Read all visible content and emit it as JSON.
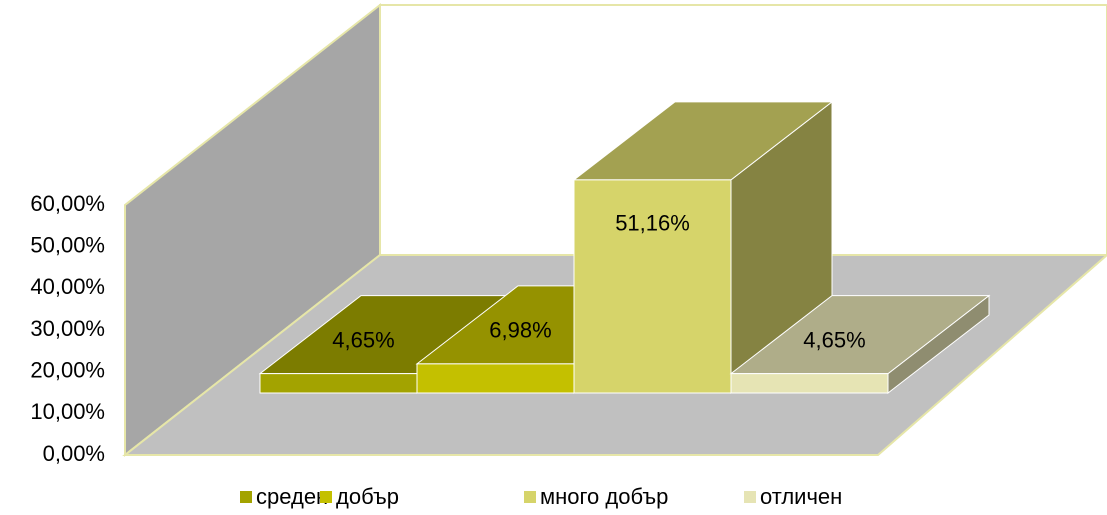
{
  "chart_data": {
    "type": "bar3d",
    "categories": [
      "среден",
      "добър",
      "много добър",
      "отличен"
    ],
    "values": [
      4.65,
      6.98,
      51.16,
      4.65
    ],
    "value_labels": [
      "4,65%",
      "6,98%",
      "51,16%",
      "4,65%"
    ],
    "colors": [
      "#a3a300",
      "#c4c000",
      "#d6d46a",
      "#e6e4b4"
    ],
    "ylim": [
      0,
      60
    ],
    "yticks": [
      {
        "value": 0,
        "label": "0,00%"
      },
      {
        "value": 10,
        "label": "10,00%"
      },
      {
        "value": 20,
        "label": "20,00%"
      },
      {
        "value": 30,
        "label": "30,00%"
      },
      {
        "value": 40,
        "label": "40,00%"
      },
      {
        "value": 50,
        "label": "50,00%"
      },
      {
        "value": 60,
        "label": "60,00%"
      }
    ],
    "legend": "bottom"
  }
}
